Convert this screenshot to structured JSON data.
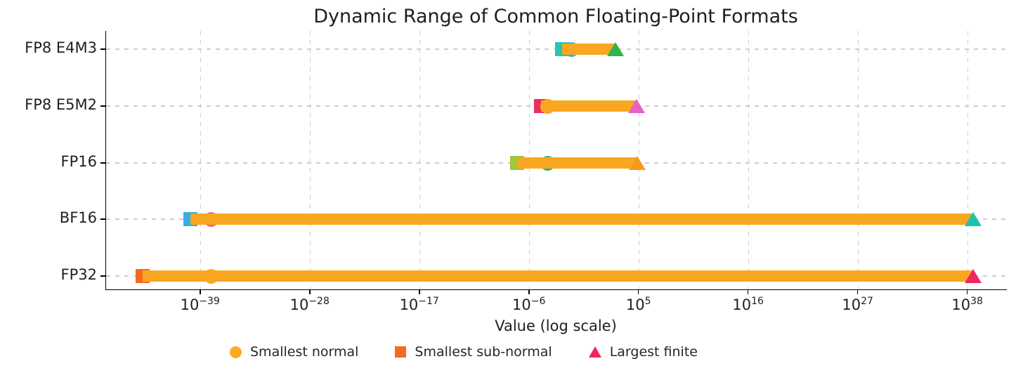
{
  "chart_data": {
    "type": "bar",
    "subtype": "horizontal-range-dumbbell",
    "title": "Dynamic Range of Common Floating-Point Formats",
    "xlabel": "Value (log scale)",
    "ylabel": "",
    "x_scale": "log",
    "x_tick_exponents": [
      -39,
      -28,
      -17,
      -6,
      5,
      16,
      27,
      38
    ],
    "x_range_exponents": [
      -48.5,
      41.9
    ],
    "grid": true,
    "grid_color": "#cccccc",
    "bar_color": "#F9A620",
    "categories": [
      "FP8 E4M3",
      "FP8 E5M2",
      "FP16",
      "BF16",
      "FP32"
    ],
    "rows": [
      {
        "label": "FP8 E4M3",
        "smallest_subnormal": 0.00195,
        "smallest_normal": 0.015625,
        "largest_finite": 448,
        "colors": {
          "subnormal_square": "#29C5B6",
          "normal_circle": "#35AEE3",
          "finite_triangle": "#2EB44E"
        }
      },
      {
        "label": "FP8 E5M2",
        "smallest_subnormal": 1.5e-05,
        "smallest_normal": 6.1e-05,
        "largest_finite": 57344,
        "colors": {
          "subnormal_square": "#EA2E5D",
          "normal_circle": "#F9A620",
          "finite_triangle": "#E95FC6"
        }
      },
      {
        "label": "FP16",
        "smallest_subnormal": 6e-08,
        "smallest_normal": 6.1e-05,
        "largest_finite": 65504,
        "colors": {
          "subnormal_square": "#9DC93C",
          "normal_circle": "#30B868",
          "finite_triangle": "#F59B20"
        }
      },
      {
        "label": "BF16",
        "smallest_subnormal": 9.2e-41,
        "smallest_normal": 1.18e-38,
        "largest_finite": 3.39e+38,
        "colors": {
          "subnormal_square": "#35B0E5",
          "normal_circle": "#F0609E",
          "finite_triangle": "#1EC2AF"
        }
      },
      {
        "label": "FP32",
        "smallest_subnormal": 1.4e-45,
        "smallest_normal": 1.18e-38,
        "largest_finite": 3.4e+38,
        "colors": {
          "subnormal_square": "#F26C1F",
          "normal_circle": "#FBAC1E",
          "finite_triangle": "#F0275E"
        }
      }
    ],
    "legend": {
      "position": "bottom",
      "items": [
        {
          "label": "Smallest normal",
          "marker": "circle",
          "color": "#FBAC1E"
        },
        {
          "label": "Smallest sub-normal",
          "marker": "square",
          "color": "#F26C1F"
        },
        {
          "label": "Largest finite",
          "marker": "triangle",
          "color": "#F0275E"
        }
      ]
    }
  }
}
